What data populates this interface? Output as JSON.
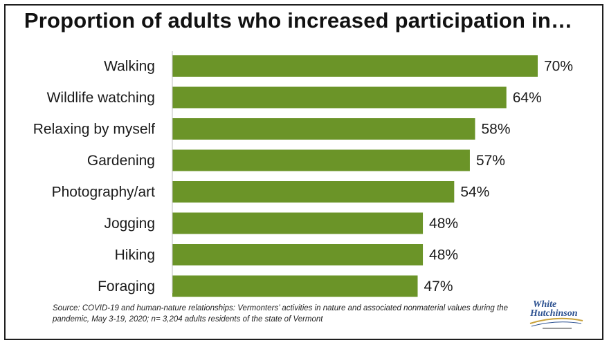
{
  "chart_data": {
    "type": "bar",
    "orientation": "horizontal",
    "title": "Proportion of adults who increased participation in…",
    "categories": [
      "Walking",
      "Wildlife watching",
      "Relaxing by myself",
      "Gardening",
      "Photography/art",
      "Jogging",
      "Hiking",
      "Foraging"
    ],
    "values": [
      70,
      64,
      58,
      57,
      54,
      48,
      48,
      47
    ],
    "value_labels": [
      "70%",
      "64%",
      "58%",
      "57%",
      "54%",
      "48%",
      "48%",
      "47%"
    ],
    "xlim": [
      0,
      70
    ],
    "bar_color": "#6b9428",
    "grid": false,
    "legend": "none"
  },
  "source": "Source: COVID-19 and human-nature relationships: Vermonters’ activities in nature and associated nonmaterial values during the pandemic, May 3-19, 2020; n= 3,204 adults residents of the state of Vermont",
  "logo": {
    "line1": "White",
    "line2": "Hutchinson"
  }
}
